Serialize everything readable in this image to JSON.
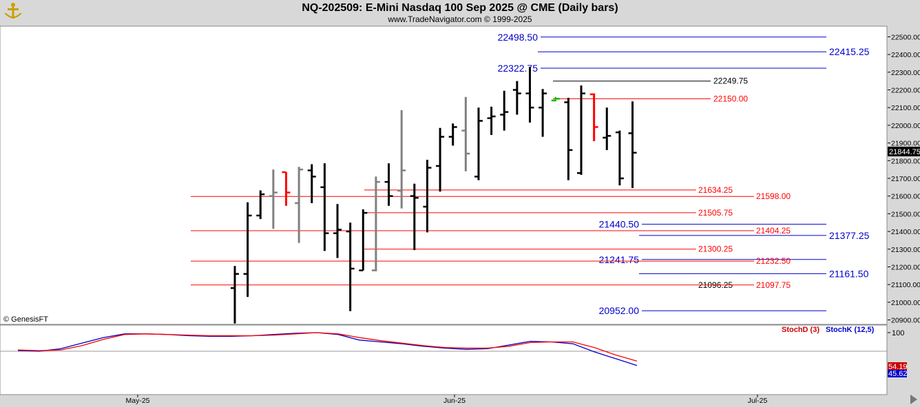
{
  "header": {
    "title": "NQ-202509:  E-Mini Nasdaq 100 Sep 2025 @ CME  (Daily bars)",
    "subtitle": "www.TradeNavigator.com © 1999-2025"
  },
  "copyright": "© GenesisFT",
  "colors": {
    "up": "#000000",
    "gray": "#808080",
    "red": "#ff0000",
    "green": "#00bb00",
    "blue": "#0000cc",
    "stochK": "#0000cc",
    "stochD": "#cc0000"
  },
  "chart_data": [
    {
      "type": "ohlc",
      "ylim": [
        20875,
        22560
      ],
      "y_ticks": [
        "20900.00",
        "21000.00",
        "21100.00",
        "21200.00",
        "21300.00",
        "21400.00",
        "21500.00",
        "21600.00",
        "21700.00",
        "21800.00",
        "21900.00",
        "22000.00",
        "22100.00",
        "22200.00",
        "22300.00",
        "22400.00",
        "22500.00"
      ],
      "last_price_label": "21844.75",
      "x_labels": [
        "May-25",
        "Jun-25",
        "Jul-25"
      ],
      "bars": [
        {
          "o": 21080,
          "h": 21205,
          "l": 20880,
          "c": 21160,
          "color": "black"
        },
        {
          "o": 21160,
          "h": 21565,
          "l": 21030,
          "c": 21490,
          "color": "black"
        },
        {
          "o": 21490,
          "h": 21632,
          "l": 21470,
          "c": 21610,
          "color": "black"
        },
        {
          "o": 21600,
          "h": 21750,
          "l": 21415,
          "c": 21620,
          "color": "gray"
        },
        {
          "o": 21735,
          "h": 21735,
          "l": 21545,
          "c": 21620,
          "color": "red"
        },
        {
          "o": 21560,
          "h": 21765,
          "l": 21335,
          "c": 21750,
          "color": "gray"
        },
        {
          "o": 21745,
          "h": 21780,
          "l": 21560,
          "c": 21710,
          "color": "black"
        },
        {
          "o": 21650,
          "h": 21785,
          "l": 21290,
          "c": 21390,
          "color": "black"
        },
        {
          "o": 21390,
          "h": 21555,
          "l": 21250,
          "c": 21410,
          "color": "black"
        },
        {
          "o": 21400,
          "h": 21450,
          "l": 20950,
          "c": 21190,
          "color": "black"
        },
        {
          "o": 21180,
          "h": 21525,
          "l": 21180,
          "c": 21505,
          "color": "black"
        },
        {
          "o": 21180,
          "h": 21710,
          "l": 21175,
          "c": 21680,
          "color": "gray"
        },
        {
          "o": 21680,
          "h": 21785,
          "l": 21545,
          "c": 21600,
          "color": "black"
        },
        {
          "o": 21630,
          "h": 22085,
          "l": 21530,
          "c": 21745,
          "color": "gray"
        },
        {
          "o": 21600,
          "h": 21670,
          "l": 21295,
          "c": 21590,
          "color": "black"
        },
        {
          "o": 21540,
          "h": 21805,
          "l": 21395,
          "c": 21760,
          "color": "black"
        },
        {
          "o": 21770,
          "h": 21985,
          "l": 21625,
          "c": 21935,
          "color": "black"
        },
        {
          "o": 21935,
          "h": 22010,
          "l": 21885,
          "c": 21990,
          "color": "black"
        },
        {
          "o": 21970,
          "h": 22160,
          "l": 21740,
          "c": 21840,
          "color": "gray"
        },
        {
          "o": 21710,
          "h": 22100,
          "l": 21690,
          "c": 22025,
          "color": "black"
        },
        {
          "o": 22040,
          "h": 22105,
          "l": 21945,
          "c": 22050,
          "color": "black"
        },
        {
          "o": 22060,
          "h": 22195,
          "l": 21970,
          "c": 22075,
          "color": "black"
        },
        {
          "o": 22200,
          "h": 22250,
          "l": 22060,
          "c": 22180,
          "color": "black"
        },
        {
          "o": 22180,
          "h": 22330,
          "l": 22015,
          "c": 22100,
          "color": "black"
        },
        {
          "o": 22100,
          "h": 22205,
          "l": 21935,
          "c": 22180,
          "color": "black"
        },
        {
          "o": 22140,
          "h": 22160,
          "l": 22135,
          "c": 22150,
          "color": "green"
        },
        {
          "o": 22130,
          "h": 22155,
          "l": 21690,
          "c": 21860,
          "color": "black"
        },
        {
          "o": 21730,
          "h": 22225,
          "l": 21720,
          "c": 22180,
          "color": "black"
        },
        {
          "o": 22175,
          "h": 22180,
          "l": 21910,
          "c": 21990,
          "color": "red"
        },
        {
          "o": 21930,
          "h": 22100,
          "l": 21860,
          "c": 21940,
          "color": "black"
        },
        {
          "o": 21960,
          "h": 21970,
          "l": 21660,
          "c": 21700,
          "color": "black"
        },
        {
          "o": 21955,
          "h": 22135,
          "l": 21645,
          "c": 21845,
          "color": "black"
        }
      ],
      "levels": [
        {
          "price": 22498.5,
          "label": "22498.50",
          "color": "blue"
        },
        {
          "price": 22415.25,
          "label": "22415.25",
          "color": "blue"
        },
        {
          "price": 22322.75,
          "label": "22322.75",
          "color": "blue"
        },
        {
          "price": 22249.75,
          "label": "22249.75",
          "color": "black"
        },
        {
          "price": 22150.0,
          "label": "22150.00",
          "color": "red"
        },
        {
          "price": 21634.25,
          "label": "21634.25",
          "color": "red"
        },
        {
          "price": 21598.0,
          "label": "21598.00",
          "color": "red"
        },
        {
          "price": 21505.75,
          "label": "21505.75",
          "color": "red"
        },
        {
          "price": 21440.5,
          "label": "21440.50",
          "color": "blue"
        },
        {
          "price": 21404.25,
          "label": "21404.25",
          "color": "red"
        },
        {
          "price": 21377.25,
          "label": "21377.25",
          "color": "blue"
        },
        {
          "price": 21300.25,
          "label": "21300.25",
          "color": "red"
        },
        {
          "price": 21241.75,
          "label": "21241.75",
          "color": "blue"
        },
        {
          "price": 21232.5,
          "label": "21232.50",
          "color": "red"
        },
        {
          "price": 21161.5,
          "label": "21161.50",
          "color": "blue"
        },
        {
          "price": 21096.25,
          "label": "21096.25",
          "color": "black"
        },
        {
          "price": 21097.75,
          "label": "21097.75",
          "color": "red"
        },
        {
          "price": 20952.0,
          "label": "20952.00",
          "color": "blue"
        }
      ]
    },
    {
      "type": "line",
      "ylim": [
        0,
        100
      ],
      "y_ticks": [
        "100"
      ],
      "stochD_label": "StochD (3)",
      "stochK_label": "StochK (12,5)",
      "last_values": [
        "54.19",
        "45.62"
      ],
      "series": [
        {
          "name": "StochK (12,5)",
          "color": "blue",
          "values": [
            71,
            70,
            74,
            83,
            92,
            98,
            98,
            97,
            95,
            94,
            94,
            95,
            97,
            99,
            100,
            97,
            88,
            85,
            82,
            78,
            75,
            73,
            74,
            80,
            86,
            85,
            82,
            69,
            58,
            47
          ]
        },
        {
          "name": "StochD (3)",
          "color": "red",
          "values": [
            72,
            71,
            72,
            79,
            89,
            97,
            98,
            97,
            96,
            95,
            95,
            95,
            96,
            98,
            100,
            98,
            92,
            87,
            83,
            79,
            76,
            75,
            75,
            78,
            84,
            85,
            85,
            76,
            64,
            54
          ]
        }
      ]
    }
  ]
}
